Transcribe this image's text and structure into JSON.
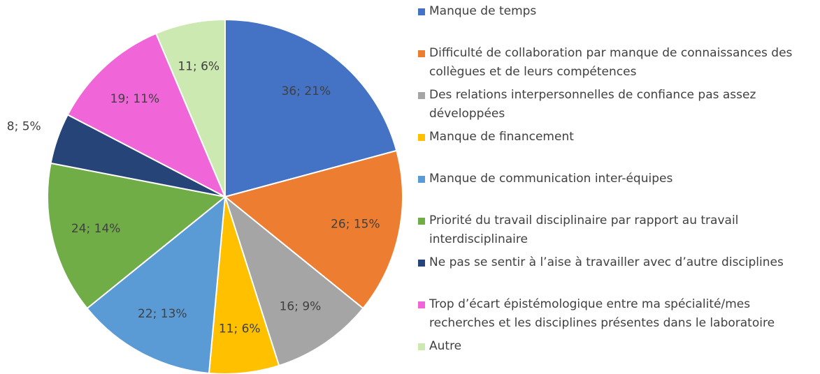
{
  "chart_data": {
    "type": "pie",
    "categories": [
      "Manque de temps",
      "Difficulté de collaboration par manque de connaissances des collègues et de leurs compétences",
      "Des relations interpersonnelles de confiance pas assez développées",
      "Manque de financement",
      "Manque de communication inter-équipes",
      "Priorité du travail disciplinaire par rapport au travail interdisciplinaire",
      "Ne pas se sentir à l’aise à travailler avec d’autre disciplines",
      "Trop d’écart épistémologique entre ma spécialité/mes recherches et les disciplines présentes dans le laboratoire",
      "Autre"
    ],
    "values": [
      36,
      26,
      16,
      11,
      22,
      24,
      8,
      19,
      11
    ],
    "value_labels": [
      "36; 21%",
      "26; 15%",
      "16; 9%",
      "11; 6%",
      "22; 13%",
      "24; 14%",
      "8; 5%",
      "19; 11%",
      "11; 6%"
    ],
    "colors": [
      "#4472c4",
      "#ed7d31",
      "#a5a5a5",
      "#ffc000",
      "#5b9bd5",
      "#70ad47",
      "#264478",
      "#f066d8",
      "#cde9b2"
    ],
    "legend": "right"
  }
}
